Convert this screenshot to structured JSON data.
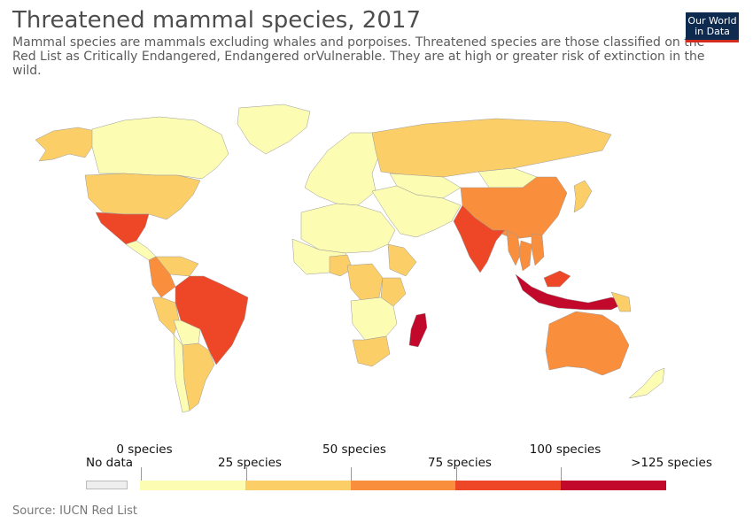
{
  "header": {
    "title": "Threatened mammal species, 2017",
    "subtitle": "Mammal species are mammals excluding whales and porpoises. Threatened species are those classified on the Red List as Critically Endangered, Endangered orVulnerable. They are at high or greater risk of extinction in the wild."
  },
  "logo": {
    "line1": "Our World",
    "line2": "in Data"
  },
  "legend": {
    "no_data": "No data",
    "labels_top": [
      "0 species",
      "50 species",
      "100 species"
    ],
    "labels_bottom": [
      "25 species",
      "75 species",
      ">125 species"
    ],
    "colors": [
      "#fdfcb3",
      "#fcce67",
      "#f98e3d",
      "#ed4727",
      "#c2082b"
    ],
    "no_data_color": "#eeeeee"
  },
  "footer": {
    "source": "Source: IUCN Red List"
  },
  "map": {
    "ocean_color": "#ffffff",
    "regions": [
      {
        "name": "Canada",
        "bin": 0
      },
      {
        "name": "Greenland",
        "bin": 0
      },
      {
        "name": "Alaska",
        "bin": 1
      },
      {
        "name": "United States",
        "bin": 1
      },
      {
        "name": "Mexico",
        "bin": 3
      },
      {
        "name": "Central America",
        "bin": 0
      },
      {
        "name": "Colombia",
        "bin": 2
      },
      {
        "name": "Venezuela",
        "bin": 1
      },
      {
        "name": "Brazil",
        "bin": 3
      },
      {
        "name": "Peru",
        "bin": 1
      },
      {
        "name": "Bolivia",
        "bin": 0
      },
      {
        "name": "Argentina",
        "bin": 1
      },
      {
        "name": "Chile",
        "bin": 0
      },
      {
        "name": "Europe",
        "bin": 0
      },
      {
        "name": "Russia",
        "bin": 1
      },
      {
        "name": "Kazakhstan",
        "bin": 0
      },
      {
        "name": "China",
        "bin": 2
      },
      {
        "name": "Mongolia",
        "bin": 0
      },
      {
        "name": "India",
        "bin": 3
      },
      {
        "name": "Myanmar",
        "bin": 2
      },
      {
        "name": "Thailand",
        "bin": 2
      },
      {
        "name": "Vietnam",
        "bin": 2
      },
      {
        "name": "Middle East",
        "bin": 0
      },
      {
        "name": "North Africa",
        "bin": 0
      },
      {
        "name": "West Africa",
        "bin": 0
      },
      {
        "name": "Nigeria",
        "bin": 1
      },
      {
        "name": "DR Congo",
        "bin": 1
      },
      {
        "name": "Tanzania",
        "bin": 1
      },
      {
        "name": "Ethiopia",
        "bin": 1
      },
      {
        "name": "Southern Africa",
        "bin": 0
      },
      {
        "name": "South Africa",
        "bin": 1
      },
      {
        "name": "Madagascar",
        "bin": 4
      },
      {
        "name": "Indonesia",
        "bin": 4
      },
      {
        "name": "Malaysia",
        "bin": 3
      },
      {
        "name": "Papua New Guinea",
        "bin": 1
      },
      {
        "name": "Australia",
        "bin": 2
      },
      {
        "name": "New Zealand",
        "bin": 0
      },
      {
        "name": "Japan",
        "bin": 1
      }
    ]
  }
}
